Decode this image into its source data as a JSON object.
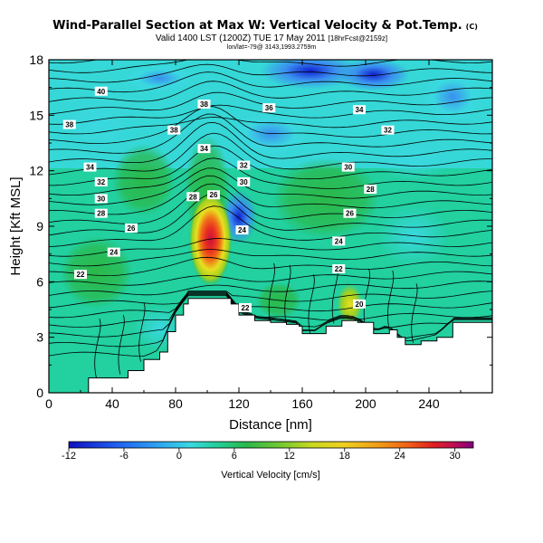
{
  "chart_data": {
    "type": "heatmap",
    "title": "Wind-Parallel Section at Max W: Vertical Velocity & Pot.Temp.",
    "title_mark": "(C)",
    "subtitle": "Valid 1400 LST (1200Z) TUE 17 May 2011",
    "subtitle_extra": "[18hrFcst@2159z]",
    "subtitle2": "lon/lat=-79@ 3143,1993.2759m",
    "xlabel": "Distance [nm]",
    "ylabel": "Height [Kft MSL]",
    "xlim": [
      0,
      280
    ],
    "ylim": [
      0,
      18
    ],
    "x_ticks": [
      "0",
      "40",
      "80",
      "120",
      "160",
      "200",
      "240"
    ],
    "y_ticks": [
      "0",
      "3",
      "6",
      "9",
      "12",
      "15",
      "18"
    ],
    "colorbar": {
      "label": "Vertical Velocity [cm/s]",
      "min": -12,
      "max": 32,
      "ticks": [
        "-12",
        "-6",
        "0",
        "6",
        "12",
        "18",
        "24",
        "30"
      ]
    },
    "colors": {
      "strong_down": "#1020d0",
      "down": "#3a8ef0",
      "weak_down": "#3ad8e0",
      "neutral": "#22d0a0",
      "weak_up": "#2ab84a",
      "up": "#a0d020",
      "strong_up": "#e8e020",
      "peak": "#e83020",
      "max": "#c81040"
    },
    "terrain": [
      [
        0,
        0
      ],
      [
        20,
        0
      ],
      [
        25,
        0.8
      ],
      [
        40,
        0.8
      ],
      [
        50,
        1.2
      ],
      [
        60,
        1.8
      ],
      [
        70,
        2.2
      ],
      [
        75,
        3.3
      ],
      [
        80,
        4.2
      ],
      [
        85,
        4.8
      ],
      [
        88,
        5.1
      ],
      [
        112,
        5.1
      ],
      [
        115,
        4.8
      ],
      [
        120,
        4.2
      ],
      [
        130,
        3.9
      ],
      [
        140,
        3.8
      ],
      [
        150,
        3.7
      ],
      [
        158,
        3.6
      ],
      [
        160,
        3.2
      ],
      [
        168,
        3.2
      ],
      [
        175,
        3.6
      ],
      [
        185,
        3.9
      ],
      [
        195,
        3.8
      ],
      [
        205,
        3.2
      ],
      [
        215,
        3.4
      ],
      [
        220,
        3.0
      ],
      [
        225,
        2.6
      ],
      [
        235,
        2.8
      ],
      [
        245,
        3.0
      ],
      [
        255,
        3.8
      ],
      [
        280,
        3.8
      ]
    ],
    "isentrope_labels": [
      {
        "text": "40",
        "x": 33,
        "y": 16.3
      },
      {
        "text": "38",
        "x": 13,
        "y": 14.5
      },
      {
        "text": "38",
        "x": 98,
        "y": 15.6
      },
      {
        "text": "38",
        "x": 79,
        "y": 14.2
      },
      {
        "text": "36",
        "x": 139,
        "y": 15.4
      },
      {
        "text": "34",
        "x": 196,
        "y": 15.3
      },
      {
        "text": "34",
        "x": 98,
        "y": 13.2
      },
      {
        "text": "32",
        "x": 214,
        "y": 14.2
      },
      {
        "text": "32",
        "x": 123,
        "y": 12.3
      },
      {
        "text": "30",
        "x": 123,
        "y": 11.4
      },
      {
        "text": "30",
        "x": 189,
        "y": 12.2
      },
      {
        "text": "34",
        "x": 26,
        "y": 12.2
      },
      {
        "text": "32",
        "x": 33,
        "y": 11.4
      },
      {
        "text": "30",
        "x": 33,
        "y": 10.5
      },
      {
        "text": "28",
        "x": 33,
        "y": 9.7
      },
      {
        "text": "28",
        "x": 91,
        "y": 10.6
      },
      {
        "text": "26",
        "x": 104,
        "y": 10.7
      },
      {
        "text": "28",
        "x": 203,
        "y": 11.0
      },
      {
        "text": "26",
        "x": 52,
        "y": 8.9
      },
      {
        "text": "24",
        "x": 122,
        "y": 8.8
      },
      {
        "text": "26",
        "x": 190,
        "y": 9.7
      },
      {
        "text": "24",
        "x": 41,
        "y": 7.6
      },
      {
        "text": "24",
        "x": 183,
        "y": 8.2
      },
      {
        "text": "22",
        "x": 20,
        "y": 6.4
      },
      {
        "text": "22",
        "x": 183,
        "y": 6.7
      },
      {
        "text": "22",
        "x": 124,
        "y": 4.6
      },
      {
        "text": "20",
        "x": 196,
        "y": 4.8
      }
    ]
  }
}
